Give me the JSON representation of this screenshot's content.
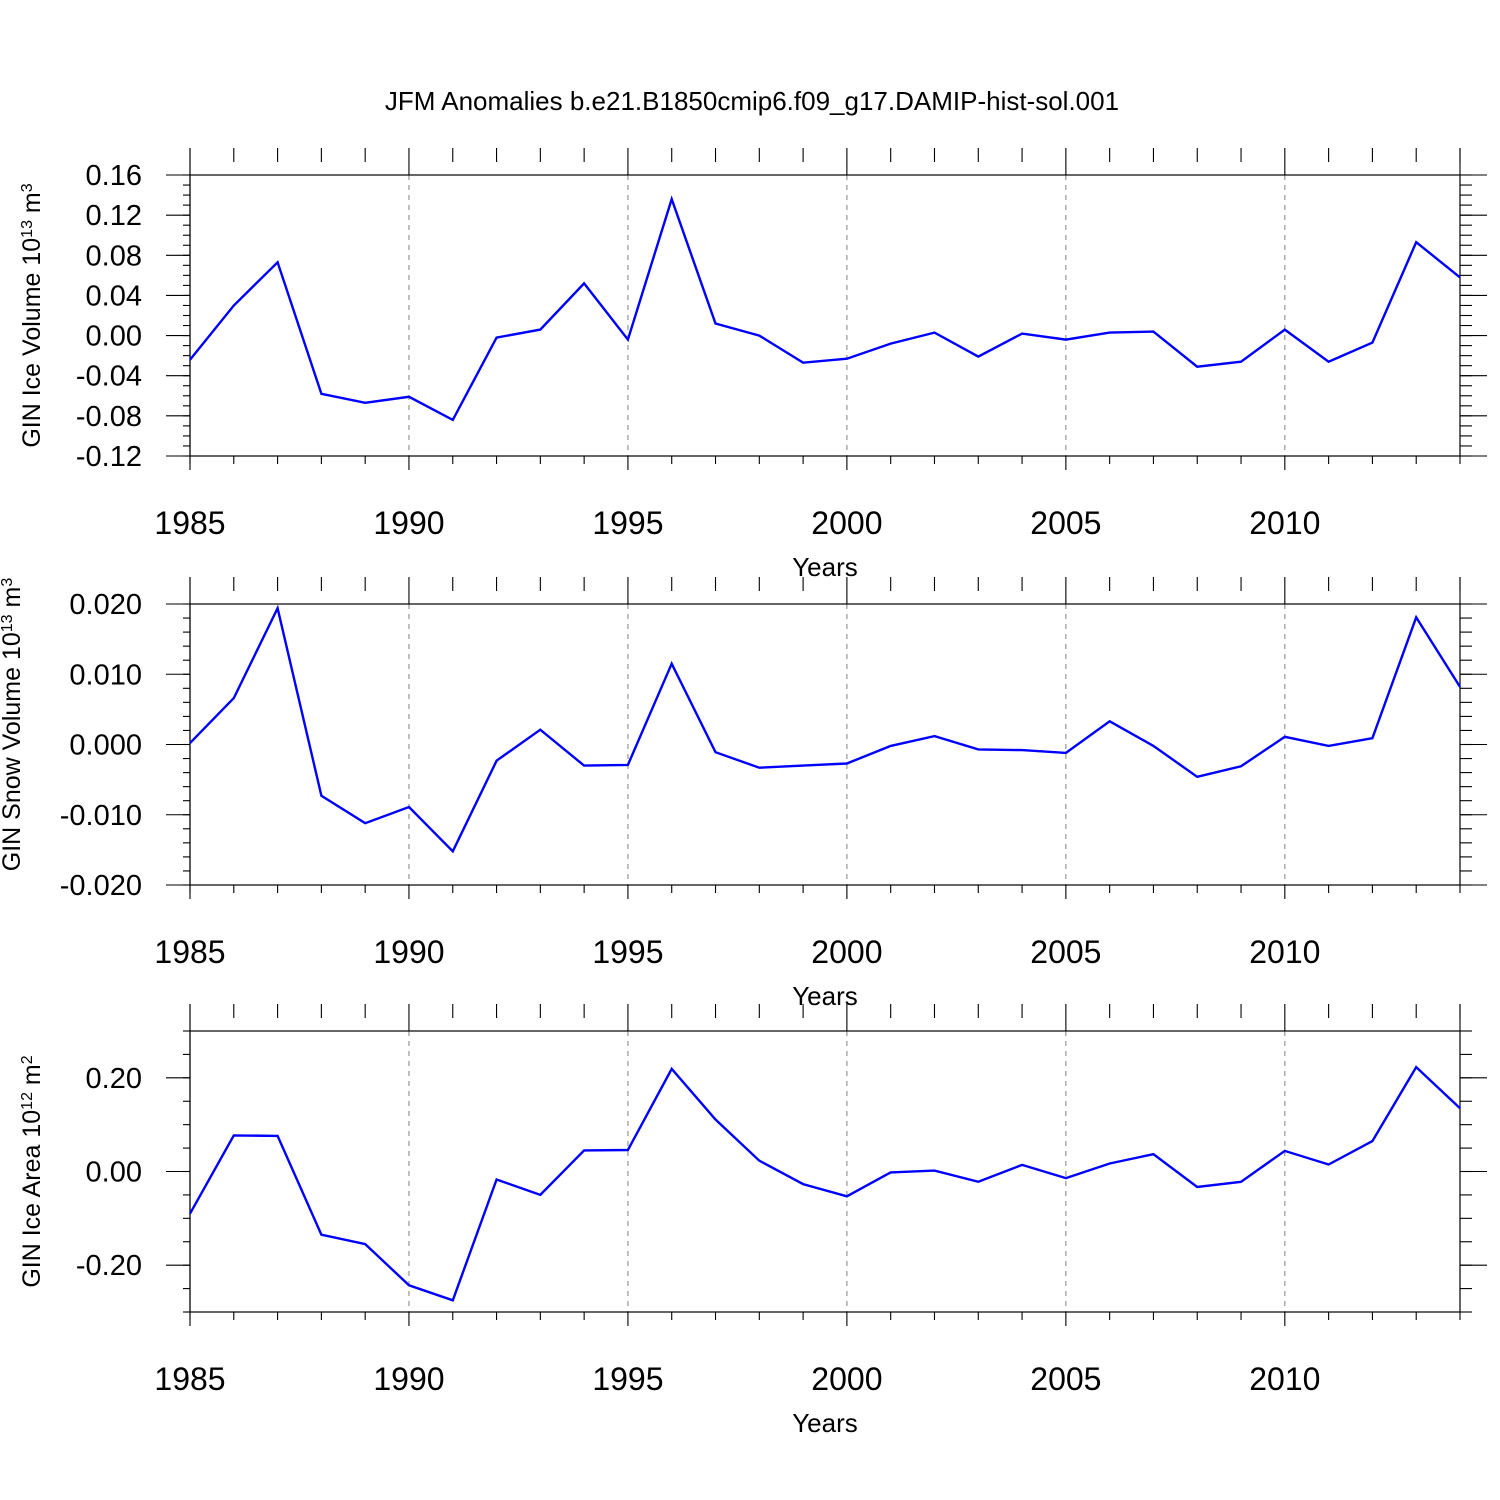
{
  "title": "JFM Anomalies b.e21.B1850cmip6.f09_g17.DAMIP-hist-sol.001",
  "colors": {
    "series": "#0000ff",
    "grid": "#8c8c8c",
    "axes": "#000000"
  },
  "chart_data": [
    {
      "type": "line",
      "ylabel": "GIN Ice Volume 10",
      "ylabel_exp": "13",
      "ylabel_unit": " m",
      "ylabel_unit_exp": "3",
      "xlabel": "Years",
      "xlim": [
        1985,
        2014
      ],
      "ylim": [
        -0.12,
        0.16
      ],
      "yticks": [
        "0.16",
        "0.12",
        "0.08",
        "0.04",
        "0.00",
        "-0.04",
        "-0.08",
        "-0.12"
      ],
      "xticks": [
        "1985",
        "1990",
        "1995",
        "2000",
        "2005",
        "2010"
      ],
      "x": [
        1985,
        1986,
        1987,
        1988,
        1989,
        1990,
        1991,
        1992,
        1993,
        1994,
        1995,
        1996,
        1997,
        1998,
        1999,
        2000,
        2001,
        2002,
        2003,
        2004,
        2005,
        2006,
        2007,
        2008,
        2009,
        2010,
        2011,
        2012,
        2013,
        2014
      ],
      "values": [
        -0.024,
        0.03,
        0.073,
        -0.058,
        -0.067,
        -0.061,
        -0.084,
        -0.002,
        0.006,
        0.052,
        -0.004,
        0.136,
        0.012,
        0.0,
        -0.027,
        -0.023,
        -0.008,
        0.003,
        -0.021,
        0.002,
        -0.004,
        0.003,
        0.004,
        -0.031,
        -0.026,
        0.006,
        -0.026,
        -0.007,
        0.093,
        0.058
      ]
    },
    {
      "type": "line",
      "ylabel": "GIN Snow Volume 10",
      "ylabel_exp": "13",
      "ylabel_unit": " m",
      "ylabel_unit_exp": "3",
      "xlabel": "Years",
      "xlim": [
        1985,
        2014
      ],
      "ylim": [
        -0.02,
        0.02
      ],
      "yticks": [
        "0.020",
        "0.010",
        "0.000",
        "-0.010",
        "-0.020"
      ],
      "xticks": [
        "1985",
        "1990",
        "1995",
        "2000",
        "2005",
        "2010"
      ],
      "x": [
        1985,
        1986,
        1987,
        1988,
        1989,
        1990,
        1991,
        1992,
        1993,
        1994,
        1995,
        1996,
        1997,
        1998,
        1999,
        2000,
        2001,
        2002,
        2003,
        2004,
        2005,
        2006,
        2007,
        2008,
        2009,
        2010,
        2011,
        2012,
        2013,
        2014
      ],
      "values": [
        0.0002,
        0.0066,
        0.0194,
        -0.0073,
        -0.0112,
        -0.0089,
        -0.0152,
        -0.0023,
        0.0021,
        -0.003,
        -0.0029,
        0.0115,
        -0.0011,
        -0.0033,
        -0.003,
        -0.0027,
        -0.0002,
        0.0012,
        -0.0007,
        -0.0008,
        -0.0012,
        0.0033,
        -0.0002,
        -0.0046,
        -0.0031,
        0.0011,
        -0.0002,
        0.0009,
        0.0181,
        0.0082
      ]
    },
    {
      "type": "line",
      "ylabel": "GIN Ice Area 10",
      "ylabel_exp": "12",
      "ylabel_unit": " m",
      "ylabel_unit_exp": "2",
      "xlabel": "Years",
      "xlim": [
        1985,
        2014
      ],
      "ylim": [
        -0.3,
        0.3
      ],
      "yticks": [
        "0.20",
        "0.00",
        "-0.20"
      ],
      "xticks": [
        "1985",
        "1990",
        "1995",
        "2000",
        "2005",
        "2010"
      ],
      "x": [
        1985,
        1986,
        1987,
        1988,
        1989,
        1990,
        1991,
        1992,
        1993,
        1994,
        1995,
        1996,
        1997,
        1998,
        1999,
        2000,
        2001,
        2002,
        2003,
        2004,
        2005,
        2006,
        2007,
        2008,
        2009,
        2010,
        2011,
        2012,
        2013,
        2014
      ],
      "values": [
        -0.09,
        0.077,
        0.076,
        -0.135,
        -0.155,
        -0.243,
        -0.275,
        -0.017,
        -0.05,
        0.045,
        0.046,
        0.219,
        0.111,
        0.023,
        -0.027,
        -0.053,
        -0.002,
        0.002,
        -0.022,
        0.014,
        -0.014,
        0.017,
        0.037,
        -0.033,
        -0.022,
        0.044,
        0.015,
        0.065,
        0.223,
        0.135
      ]
    }
  ]
}
